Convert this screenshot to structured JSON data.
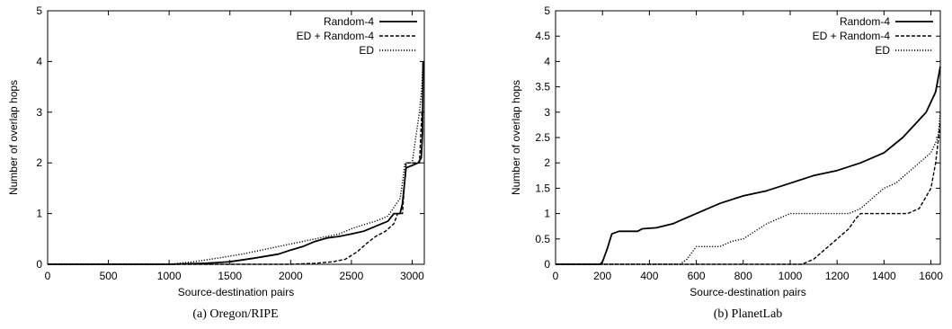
{
  "chart_data": [
    {
      "type": "line",
      "caption": "(a) Oregon/RIPE",
      "xlabel": "Source-destination pairs",
      "ylabel": "Number of overlap hops",
      "xlim": [
        0,
        3100
      ],
      "ylim": [
        0,
        5
      ],
      "xticks": [
        0,
        500,
        1000,
        1500,
        2000,
        2500,
        3000
      ],
      "yticks": [
        0,
        1,
        2,
        3,
        4,
        5
      ],
      "ytick_labels": [
        "0",
        "1",
        "2",
        "3",
        "4",
        "5"
      ],
      "grid": false,
      "legend_position": "top-right",
      "series": [
        {
          "name": "Random-4",
          "style": "solid",
          "points": [
            [
              0,
              0
            ],
            [
              1000,
              0
            ],
            [
              1300,
              0.02
            ],
            [
              1500,
              0.05
            ],
            [
              1700,
              0.12
            ],
            [
              1900,
              0.2
            ],
            [
              2000,
              0.28
            ],
            [
              2100,
              0.35
            ],
            [
              2200,
              0.45
            ],
            [
              2300,
              0.52
            ],
            [
              2400,
              0.55
            ],
            [
              2500,
              0.6
            ],
            [
              2600,
              0.65
            ],
            [
              2700,
              0.75
            ],
            [
              2800,
              0.85
            ],
            [
              2850,
              1.0
            ],
            [
              2900,
              1.0
            ],
            [
              2920,
              1.2
            ],
            [
              2950,
              1.9
            ],
            [
              3000,
              1.95
            ],
            [
              3050,
              2.0
            ],
            [
              3075,
              2.1
            ],
            [
              3085,
              2.6
            ],
            [
              3090,
              4.0
            ]
          ]
        },
        {
          "name": "ED + Random-4",
          "style": "dashed",
          "points": [
            [
              0,
              0
            ],
            [
              2000,
              0
            ],
            [
              2200,
              0.02
            ],
            [
              2350,
              0.05
            ],
            [
              2450,
              0.1
            ],
            [
              2550,
              0.25
            ],
            [
              2620,
              0.4
            ],
            [
              2700,
              0.55
            ],
            [
              2780,
              0.65
            ],
            [
              2850,
              0.8
            ],
            [
              2880,
              1.0
            ],
            [
              2920,
              1.0
            ],
            [
              2935,
              1.5
            ],
            [
              2950,
              2.0
            ],
            [
              3060,
              2.0
            ],
            [
              3070,
              2.5
            ],
            [
              3080,
              3.0
            ],
            [
              3090,
              3.0
            ]
          ]
        },
        {
          "name": "ED",
          "style": "dotted",
          "points": [
            [
              0,
              0
            ],
            [
              1000,
              0
            ],
            [
              1200,
              0.05
            ],
            [
              1400,
              0.12
            ],
            [
              1600,
              0.2
            ],
            [
              1800,
              0.3
            ],
            [
              2000,
              0.4
            ],
            [
              2200,
              0.5
            ],
            [
              2400,
              0.6
            ],
            [
              2500,
              0.7
            ],
            [
              2600,
              0.78
            ],
            [
              2700,
              0.85
            ],
            [
              2800,
              0.95
            ],
            [
              2900,
              1.3
            ],
            [
              2920,
              1.6
            ],
            [
              2940,
              2.0
            ],
            [
              3000,
              2.0
            ],
            [
              3030,
              2.5
            ],
            [
              3060,
              3.0
            ],
            [
              3080,
              3.5
            ],
            [
              3090,
              4.0
            ]
          ]
        }
      ]
    },
    {
      "type": "line",
      "caption": "(b) PlanetLab",
      "xlabel": "Source-destination pairs",
      "ylabel": "Number of overlap hops",
      "xlim": [
        0,
        1640
      ],
      "ylim": [
        0,
        5
      ],
      "xticks": [
        0,
        200,
        400,
        600,
        800,
        1000,
        1200,
        1400,
        1600
      ],
      "yticks": [
        0,
        0.5,
        1,
        1.5,
        2,
        2.5,
        3,
        3.5,
        4,
        4.5,
        5
      ],
      "ytick_labels": [
        "0",
        "0.5",
        "1",
        "1.5",
        "2",
        "2.5",
        "3",
        "3.5",
        "4",
        "4.5",
        "5"
      ],
      "grid": false,
      "legend_position": "top-right",
      "series": [
        {
          "name": "Random-4",
          "style": "solid",
          "points": [
            [
              0,
              0
            ],
            [
              190,
              0
            ],
            [
              200,
              0.05
            ],
            [
              220,
              0.3
            ],
            [
              240,
              0.6
            ],
            [
              270,
              0.65
            ],
            [
              300,
              0.65
            ],
            [
              350,
              0.65
            ],
            [
              370,
              0.7
            ],
            [
              430,
              0.72
            ],
            [
              500,
              0.8
            ],
            [
              550,
              0.9
            ],
            [
              600,
              1.0
            ],
            [
              700,
              1.2
            ],
            [
              800,
              1.35
            ],
            [
              900,
              1.45
            ],
            [
              1000,
              1.6
            ],
            [
              1100,
              1.75
            ],
            [
              1200,
              1.85
            ],
            [
              1300,
              2.0
            ],
            [
              1400,
              2.2
            ],
            [
              1480,
              2.5
            ],
            [
              1540,
              2.8
            ],
            [
              1580,
              3.0
            ],
            [
              1620,
              3.4
            ],
            [
              1640,
              3.9
            ]
          ]
        },
        {
          "name": "ED + Random-4",
          "style": "dashed",
          "points": [
            [
              0,
              0
            ],
            [
              1050,
              0
            ],
            [
              1100,
              0.1
            ],
            [
              1150,
              0.3
            ],
            [
              1200,
              0.5
            ],
            [
              1250,
              0.7
            ],
            [
              1280,
              0.9
            ],
            [
              1300,
              1.0
            ],
            [
              1500,
              1.0
            ],
            [
              1550,
              1.1
            ],
            [
              1600,
              1.5
            ],
            [
              1620,
              2.0
            ],
            [
              1640,
              2.8
            ]
          ]
        },
        {
          "name": "ED",
          "style": "dotted",
          "points": [
            [
              0,
              0
            ],
            [
              530,
              0
            ],
            [
              560,
              0.1
            ],
            [
              600,
              0.35
            ],
            [
              700,
              0.35
            ],
            [
              750,
              0.45
            ],
            [
              800,
              0.5
            ],
            [
              850,
              0.65
            ],
            [
              900,
              0.8
            ],
            [
              950,
              0.9
            ],
            [
              1000,
              1.0
            ],
            [
              1250,
              1.0
            ],
            [
              1300,
              1.1
            ],
            [
              1350,
              1.3
            ],
            [
              1400,
              1.5
            ],
            [
              1450,
              1.6
            ],
            [
              1500,
              1.8
            ],
            [
              1550,
              2.0
            ],
            [
              1600,
              2.2
            ],
            [
              1630,
              2.5
            ],
            [
              1640,
              3.0
            ]
          ]
        }
      ]
    }
  ]
}
